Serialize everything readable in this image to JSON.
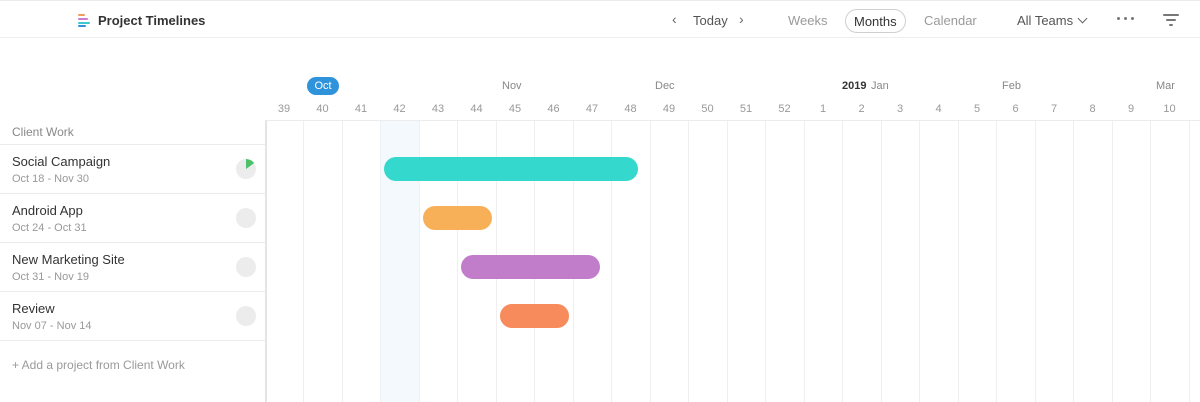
{
  "header": {
    "app_title": "Project Timelines",
    "prev_label": "‹",
    "today_label": "Today",
    "next_label": "›",
    "views": [
      {
        "label": "Weeks",
        "active": false
      },
      {
        "label": "Months",
        "active": true
      },
      {
        "label": "Calendar",
        "active": false
      }
    ],
    "team_filter": "All Teams",
    "more_icon": "more-horizontal-icon",
    "filter_icon": "filter-lines-icon",
    "app_icon_colors": [
      "#f39b5b",
      "#c97dcb",
      "#3dc7cf",
      "#2f93dc"
    ]
  },
  "timeline": {
    "months": [
      "Oct",
      "Nov",
      "Dec",
      "Jan",
      "Feb",
      "Mar"
    ],
    "year": "2019",
    "current_month_color": "#2f93dc",
    "weeks": [
      "39",
      "40",
      "41",
      "42",
      "43",
      "44",
      "45",
      "46",
      "47",
      "48",
      "49",
      "50",
      "51",
      "52",
      "1",
      "2",
      "3",
      "4",
      "5",
      "6",
      "7",
      "8",
      "9",
      "10"
    ],
    "current_week": "42"
  },
  "group": {
    "title": "Client Work",
    "add_label": "+ Add a project from Client Work"
  },
  "projects": [
    {
      "name": "Social Campaign",
      "dates": "Oct 18 - Nov 30",
      "progress": 0.15,
      "color": "#34d8cd",
      "start_week": 42.1,
      "end_week": 48.7
    },
    {
      "name": "Android App",
      "dates": "Oct 24 - Oct 31",
      "progress": 0,
      "color": "#f7b057",
      "start_week": 43.1,
      "end_week": 44.9
    },
    {
      "name": "New Marketing Site",
      "dates": "Oct 31 - Nov 19",
      "progress": 0,
      "color": "#c27dca",
      "start_week": 44.1,
      "end_week": 47.7
    },
    {
      "name": "Review",
      "dates": "Nov 07 - Nov 14",
      "progress": 0,
      "color": "#f78b5c",
      "start_week": 45.1,
      "end_week": 46.9
    }
  ],
  "progress_fill_color": "#4cc06b"
}
